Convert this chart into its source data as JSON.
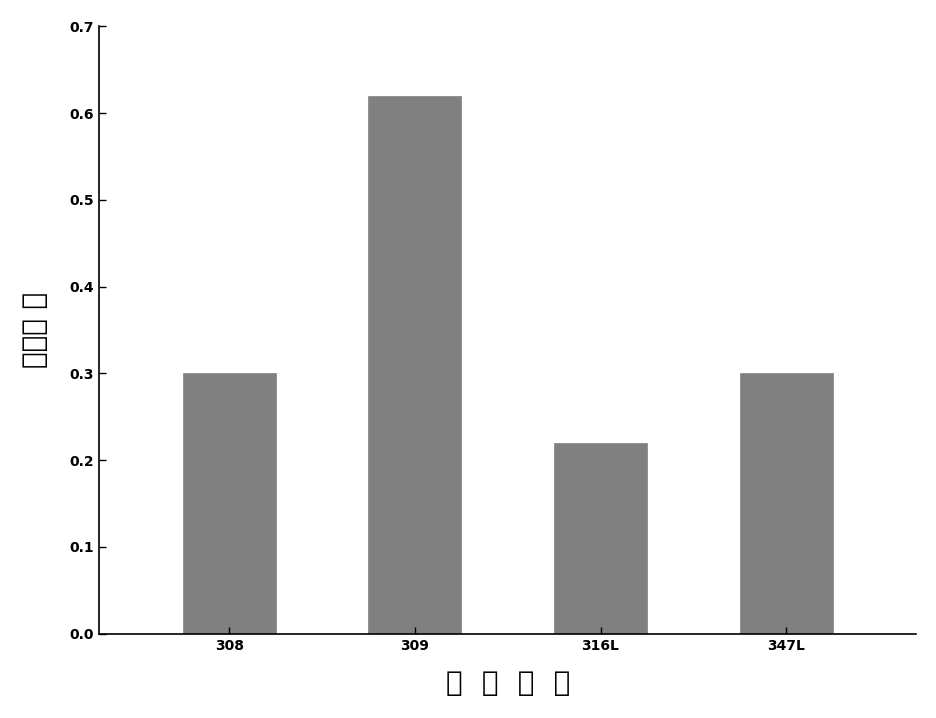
{
  "categories": [
    "308",
    "309",
    "316L",
    "347L"
  ],
  "values": [
    0.3,
    0.62,
    0.22,
    0.3
  ],
  "bar_color": "#808080",
  "bar_edgecolor": "#808080",
  "xlabel": "焉  丝  牌  号",
  "ylabel": "蒸气浓 度",
  "ylim": [
    0.0,
    0.7
  ],
  "yticks": [
    0.0,
    0.1,
    0.2,
    0.3,
    0.4,
    0.5,
    0.6,
    0.7
  ],
  "xlabel_fontsize": 20,
  "ylabel_fontsize": 20,
  "tick_fontsize": 18,
  "bar_width": 0.5,
  "background_color": "#ffffff",
  "spine_color": "#000000"
}
